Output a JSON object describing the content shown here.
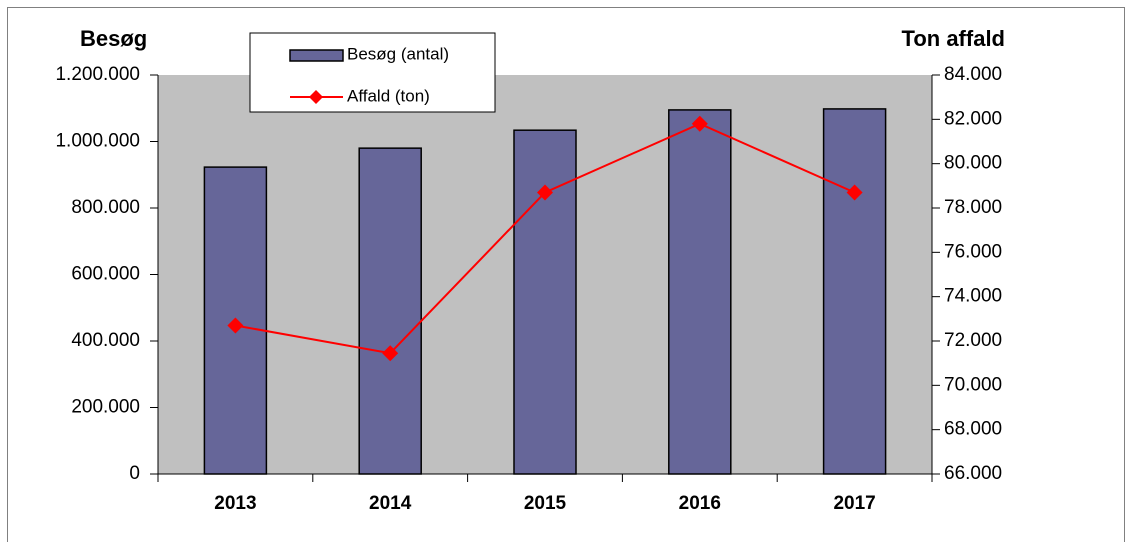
{
  "chart_data": {
    "type": "bar",
    "y_label": "Besøg",
    "y2_label": "Ton affald",
    "categories": [
      "2013",
      "2014",
      "2015",
      "2016",
      "2017"
    ],
    "series": [
      {
        "name": "Besøg (antal)",
        "type": "bar",
        "color": "#666699",
        "values": [
          923000,
          980000,
          1034000,
          1095000,
          1098000
        ]
      },
      {
        "name": "Affald (ton)",
        "type": "line",
        "axis": "y2",
        "color": "#ff0000",
        "values": [
          72700,
          71450,
          78700,
          81800,
          78700
        ]
      }
    ],
    "ylim": [
      0,
      1200000
    ],
    "yticks": [
      0,
      {
        "value": 200000,
        "label": "200.000"
      },
      {
        "value": 400000,
        "label": "400.000"
      },
      {
        "value": 600000,
        "label": "600.000"
      },
      {
        "value": 800000,
        "label": "800.000"
      },
      {
        "value": 1000000,
        "label": "1.000.000"
      },
      {
        "value": 1200000,
        "label": "1.200.000"
      }
    ],
    "y2lim": [
      66000,
      84000
    ],
    "y2ticks": [
      {
        "value": 66000,
        "label": "66.000"
      },
      {
        "value": 68000,
        "label": "68.000"
      },
      {
        "value": 70000,
        "label": "70.000"
      },
      {
        "value": 72000,
        "label": "72.000"
      },
      {
        "value": 74000,
        "label": "74.000"
      },
      {
        "value": 76000,
        "label": "76.000"
      },
      {
        "value": 78000,
        "label": "78.000"
      },
      {
        "value": 80000,
        "label": "80.000"
      },
      {
        "value": 82000,
        "label": "82.000"
      },
      {
        "value": 84000,
        "label": "84.000"
      }
    ],
    "plot_background": "#c0c0c0"
  }
}
